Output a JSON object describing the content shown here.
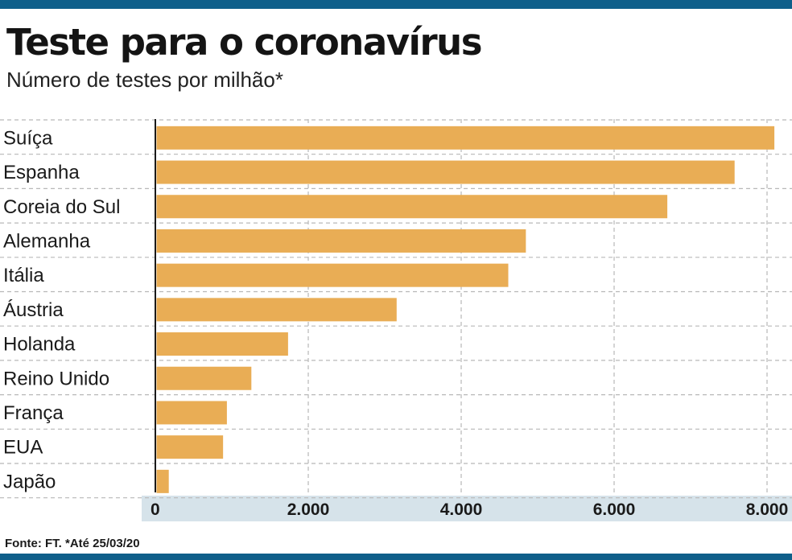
{
  "chart_data": {
    "type": "bar",
    "orientation": "horizontal",
    "title": "Teste para o coronavírus",
    "subtitle": "Número de testes por milhão*",
    "categories": [
      "Suíça",
      "Espanha",
      "Coreia do Sul",
      "Alemanha",
      "Itália",
      "Áustria",
      "Holanda",
      "Reino Unido",
      "França",
      "EUA",
      "Japão"
    ],
    "values": [
      8080,
      7560,
      6680,
      4830,
      4600,
      3140,
      1720,
      1240,
      920,
      870,
      160
    ],
    "xlim": [
      0,
      8000
    ],
    "xticks": [
      0,
      2000,
      4000,
      6000,
      8000
    ],
    "xtick_labels": [
      "0",
      "2.000",
      "4.000",
      "6.000",
      "8.000"
    ],
    "grid": true,
    "bar_color": "#e9ad55",
    "axis_band_color": "#d6e3ea",
    "source": "Fonte: FT. *Até 25/03/20"
  }
}
